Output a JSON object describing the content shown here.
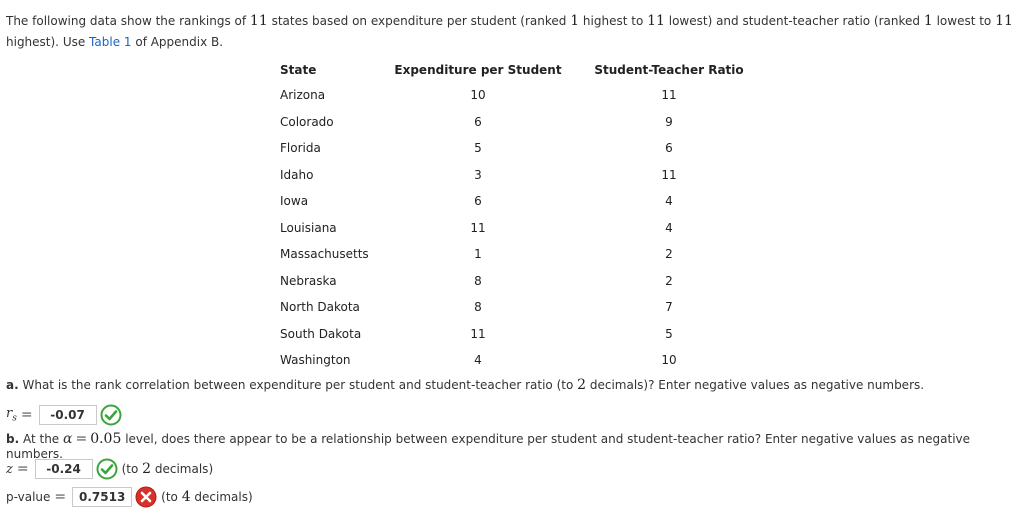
{
  "intro": {
    "part1": "The following data show the rankings of ",
    "n1": "11",
    "part2": " states based on expenditure per student (ranked ",
    "n2": "1",
    "part3": " highest to ",
    "n3": "11",
    "part4": " lowest) and student-teacher ratio (ranked ",
    "n4": "1",
    "part5": " lowest to ",
    "n5": "11",
    "part6": " highest). Use ",
    "link": "Table 1",
    "part7": " of Appendix B."
  },
  "table": {
    "headers": [
      "State",
      "Expenditure per Student",
      "Student-Teacher Ratio"
    ],
    "rows": [
      {
        "state": "Arizona",
        "expenditure": "10",
        "ratio": "11"
      },
      {
        "state": "Colorado",
        "expenditure": "6",
        "ratio": "9"
      },
      {
        "state": "Florida",
        "expenditure": "5",
        "ratio": "6"
      },
      {
        "state": "Idaho",
        "expenditure": "3",
        "ratio": "11"
      },
      {
        "state": "Iowa",
        "expenditure": "6",
        "ratio": "4"
      },
      {
        "state": "Louisiana",
        "expenditure": "11",
        "ratio": "4"
      },
      {
        "state": "Massachusetts",
        "expenditure": "1",
        "ratio": "2"
      },
      {
        "state": "Nebraska",
        "expenditure": "8",
        "ratio": "2"
      },
      {
        "state": "North Dakota",
        "expenditure": "8",
        "ratio": "7"
      },
      {
        "state": "South Dakota",
        "expenditure": "11",
        "ratio": "5"
      },
      {
        "state": "Washington",
        "expenditure": "4",
        "ratio": "10"
      }
    ]
  },
  "question_a": {
    "prefix": "a.",
    "text1": " What is the rank correlation between expenditure per student and student-teacher ratio (to ",
    "n": "2",
    "text2": " decimals)? Enter negative values as negative numbers.",
    "answer_label": "r",
    "answer_sub": "s",
    "answer_value": "-0.07",
    "status": "correct"
  },
  "question_b": {
    "prefix": "b.",
    "text1": " At the ",
    "alpha": "α",
    "alpha_value": "0.05",
    "text2": " level, does there appear to be a relationship between expenditure per student and student-teacher ratio? Enter negative values as negative numbers.",
    "z_label": "z",
    "z_value": "-0.24",
    "z_status": "correct",
    "z_hint_pre": "(to ",
    "z_hint_n": "2",
    "z_hint_post": " decimals)",
    "p_label": "p-value",
    "p_value": "0.7513",
    "p_status": "incorrect",
    "p_hint_pre": "(to ",
    "p_hint_n": "4",
    "p_hint_post": " decimals)"
  },
  "colors": {
    "correct": "#3aa63a",
    "incorrect": "#d9302c",
    "link": "#1a66c6"
  }
}
